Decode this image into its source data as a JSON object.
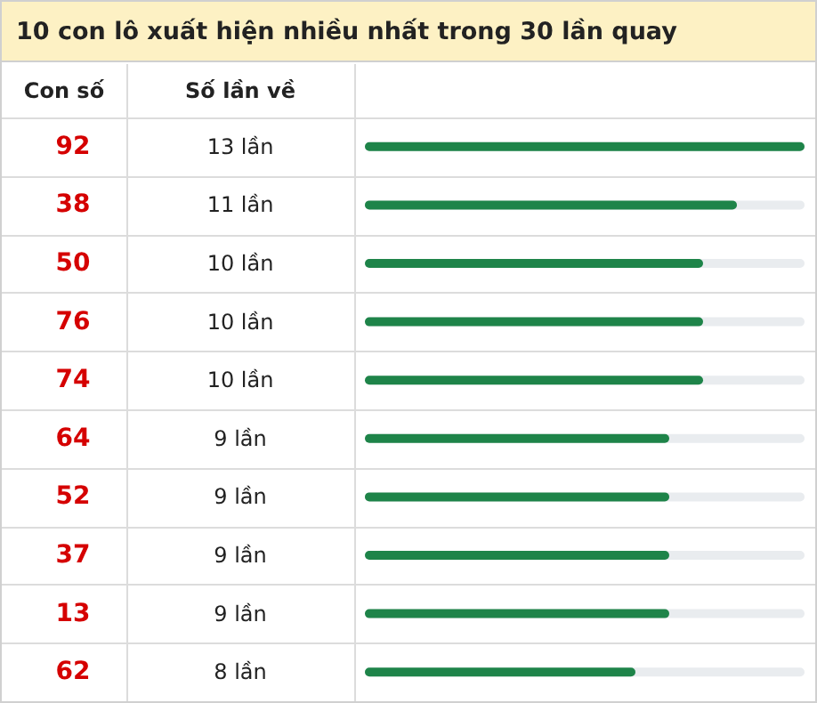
{
  "chart_data": {
    "type": "bar",
    "orientation": "horizontal",
    "title": "10 con lô xuất hiện nhiều nhất trong 30 lần quay",
    "ylabel": "Con số",
    "xlabel": "Số lần về",
    "categories": [
      "92",
      "38",
      "50",
      "76",
      "74",
      "64",
      "52",
      "37",
      "13",
      "62"
    ],
    "values": [
      13,
      11,
      10,
      10,
      10,
      9,
      9,
      9,
      9,
      8
    ],
    "value_labels": [
      "13 lần",
      "11 lần",
      "10 lần",
      "10 lần",
      "10 lần",
      "9 lần",
      "9 lần",
      "9 lần",
      "9 lần",
      "8 lần"
    ],
    "color": "#1e8449"
  }
}
